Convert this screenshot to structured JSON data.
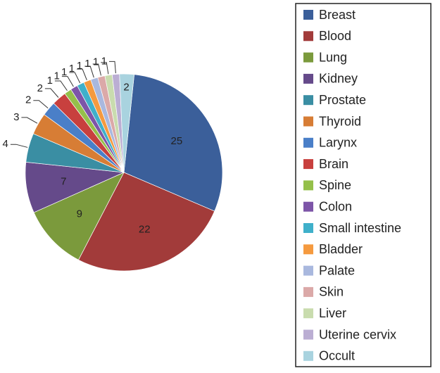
{
  "chart_data": {
    "type": "pie",
    "categories": [
      "Breast",
      "Blood",
      "Lung",
      "Kidney",
      "Prostate",
      "Thyroid",
      "Larynx",
      "Brain",
      "Spine",
      "Colon",
      "Small intestine",
      "Bladder",
      "Palate",
      "Skin",
      "Liver",
      "Uterine cervix",
      "Occult"
    ],
    "values": [
      25,
      22,
      9,
      7,
      4,
      3,
      2,
      2,
      1,
      1,
      1,
      1,
      1,
      1,
      1,
      1,
      2
    ],
    "colors": [
      "#3b5f9a",
      "#a23b3a",
      "#7b9a3c",
      "#654a8a",
      "#3a8ea3",
      "#d77d35",
      "#4a7fc8",
      "#c8403e",
      "#95c04a",
      "#7d55a8",
      "#3fb0ca",
      "#f59a3f",
      "#a9b8de",
      "#dba9a8",
      "#c9dcae",
      "#bbaed3",
      "#a9d3df"
    ],
    "legend": "right"
  }
}
